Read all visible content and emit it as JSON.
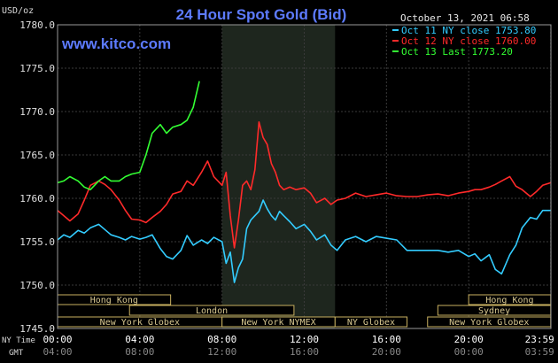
{
  "chart_data": {
    "type": "line",
    "title": "24 Hour Spot Gold (Bid)",
    "unit_label": "USD/oz",
    "watermark": "www.kitco.com",
    "timestamp": "October 13, 2021 06:58",
    "ylim": [
      1745.0,
      1780.0
    ],
    "y_ticks": [
      "1745.0",
      "1750.0",
      "1755.0",
      "1760.0",
      "1765.0",
      "1770.0",
      "1775.0",
      "1780.0"
    ],
    "x_axis": {
      "ny_label": "NY Time",
      "gmt_label": "GMT",
      "ny_ticks": [
        "00:00",
        "04:00",
        "08:00",
        "12:00",
        "16:00",
        "20:00",
        "23:59"
      ],
      "gmt_ticks": [
        "04:00",
        "08:00",
        "12:00",
        "16:00",
        "20:00",
        "00:00",
        "03:59"
      ],
      "xlim": [
        0,
        24
      ]
    },
    "highlight_hours": [
      8,
      13.5
    ],
    "legend": [
      {
        "text": "Oct 11 NY close 1753.80",
        "color": "#33ccff"
      },
      {
        "text": "Oct 12 NY close 1760.00",
        "color": "#ff2a2a"
      },
      {
        "text": "Oct 13 Last 1773.20",
        "color": "#33ff33"
      }
    ],
    "sessions": [
      {
        "label": "Hong Kong",
        "start": 0,
        "end": 5.5,
        "row": 0
      },
      {
        "label": "Hong Kong",
        "start": 20,
        "end": 23.99,
        "row": 0
      },
      {
        "label": "London",
        "start": 3.5,
        "end": 11.5,
        "row": 1
      },
      {
        "label": "Sydney",
        "start": 18.5,
        "end": 23.99,
        "row": 1
      },
      {
        "label": "New York Globex",
        "start": 0,
        "end": 8,
        "row": 2
      },
      {
        "label": "New York NYMEX",
        "start": 8,
        "end": 13.5,
        "row": 2
      },
      {
        "label": "NY Globex",
        "start": 13.5,
        "end": 17,
        "row": 2
      },
      {
        "label": "New York Globex",
        "start": 18,
        "end": 23.99,
        "row": 2
      }
    ],
    "series": [
      {
        "color": "#33ccff",
        "x": [
          0,
          0.3,
          0.6,
          1,
          1.3,
          1.6,
          2,
          2.3,
          2.6,
          3,
          3.3,
          3.6,
          4,
          4.3,
          4.6,
          5,
          5.3,
          5.6,
          6,
          6.3,
          6.6,
          7,
          7.3,
          7.6,
          8,
          8.2,
          8.4,
          8.6,
          8.8,
          9,
          9.2,
          9.4,
          9.6,
          9.8,
          10,
          10.2,
          10.4,
          10.6,
          10.8,
          11,
          11.3,
          11.6,
          12,
          12.3,
          12.6,
          13,
          13.3,
          13.6,
          14,
          14.5,
          15,
          15.5,
          16,
          16.5,
          17,
          17.5,
          18,
          18.5,
          19,
          19.5,
          20,
          20.3,
          20.6,
          21,
          21.3,
          21.6,
          22,
          22.3,
          22.6,
          23,
          23.3,
          23.6,
          23.99
        ],
        "y": [
          1755.2,
          1755.8,
          1755.5,
          1756.3,
          1756.0,
          1756.6,
          1757.0,
          1756.4,
          1755.8,
          1755.5,
          1755.2,
          1755.6,
          1755.3,
          1755.5,
          1755.8,
          1754.2,
          1753.3,
          1753.0,
          1754.0,
          1755.7,
          1754.6,
          1755.2,
          1754.8,
          1755.5,
          1755.0,
          1752.5,
          1753.8,
          1750.3,
          1752.0,
          1753.0,
          1756.5,
          1757.5,
          1758.0,
          1758.5,
          1759.8,
          1758.8,
          1758.0,
          1757.5,
          1758.5,
          1758.0,
          1757.3,
          1756.5,
          1757.0,
          1756.2,
          1755.2,
          1755.8,
          1754.6,
          1754.0,
          1755.2,
          1755.6,
          1755.0,
          1755.6,
          1755.4,
          1755.2,
          1754.0,
          1754.0,
          1754.0,
          1754.0,
          1753.8,
          1754.0,
          1753.3,
          1753.6,
          1752.8,
          1753.5,
          1751.8,
          1751.3,
          1753.5,
          1754.6,
          1756.6,
          1757.8,
          1757.6,
          1758.6,
          1758.6
        ]
      },
      {
        "color": "#ff2a2a",
        "x": [
          0,
          0.3,
          0.6,
          1,
          1.3,
          1.6,
          2,
          2.3,
          2.6,
          3,
          3.3,
          3.6,
          4,
          4.3,
          4.6,
          5,
          5.3,
          5.6,
          6,
          6.3,
          6.6,
          7,
          7.3,
          7.6,
          8,
          8.2,
          8.4,
          8.6,
          8.8,
          9,
          9.2,
          9.4,
          9.6,
          9.8,
          10,
          10.2,
          10.4,
          10.6,
          10.8,
          11,
          11.3,
          11.6,
          12,
          12.3,
          12.6,
          13,
          13.3,
          13.6,
          14,
          14.5,
          15,
          15.5,
          16,
          16.5,
          17,
          17.5,
          18,
          18.5,
          19,
          19.5,
          20,
          20.3,
          20.6,
          21,
          21.3,
          21.6,
          22,
          22.3,
          22.6,
          23,
          23.3,
          23.6,
          23.99
        ],
        "y": [
          1758.6,
          1758.0,
          1757.4,
          1758.2,
          1759.8,
          1761.5,
          1762.0,
          1761.6,
          1761.0,
          1759.8,
          1758.6,
          1757.6,
          1757.5,
          1757.2,
          1757.8,
          1758.5,
          1759.3,
          1760.5,
          1760.8,
          1762.0,
          1761.5,
          1763.0,
          1764.3,
          1762.5,
          1761.5,
          1763.0,
          1758.0,
          1754.3,
          1757.5,
          1761.5,
          1762.0,
          1761.0,
          1763.3,
          1768.8,
          1767.0,
          1766.2,
          1764.0,
          1763.0,
          1761.5,
          1761.0,
          1761.3,
          1761.0,
          1761.2,
          1760.6,
          1759.5,
          1760.0,
          1759.3,
          1759.8,
          1760.0,
          1760.6,
          1760.2,
          1760.4,
          1760.6,
          1760.3,
          1760.2,
          1760.2,
          1760.4,
          1760.5,
          1760.3,
          1760.6,
          1760.8,
          1761.0,
          1761.0,
          1761.3,
          1761.6,
          1762.0,
          1762.5,
          1761.4,
          1761.0,
          1760.2,
          1760.8,
          1761.5,
          1761.8
        ]
      },
      {
        "color": "#33ff33",
        "x": [
          0,
          0.3,
          0.6,
          1,
          1.3,
          1.6,
          2,
          2.3,
          2.6,
          3,
          3.3,
          3.6,
          4,
          4.3,
          4.6,
          5,
          5.3,
          5.6,
          6,
          6.3,
          6.6,
          6.9
        ],
        "y": [
          1761.8,
          1762.0,
          1762.5,
          1762.0,
          1761.3,
          1761.0,
          1762.0,
          1762.5,
          1762.0,
          1762.0,
          1762.5,
          1762.8,
          1763.0,
          1765.0,
          1767.5,
          1768.5,
          1767.5,
          1768.2,
          1768.5,
          1769.0,
          1770.5,
          1773.5
        ]
      }
    ]
  }
}
